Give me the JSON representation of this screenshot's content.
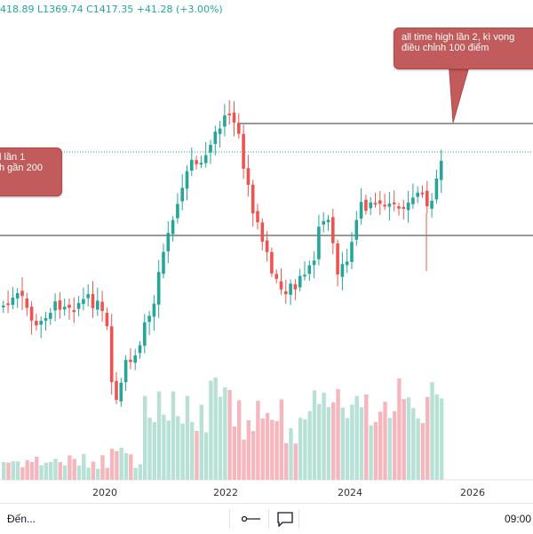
{
  "ohlc_readout": "418.89  L1369.74  C1417.35  +41.28 (+3.00%)",
  "annotations": {
    "first": {
      "line1": "l lần 1",
      "line2": "h gần 200"
    },
    "second": {
      "line1": "all time high lần 2, kì vọng",
      "line2": "điều chỉnh 100 điểm"
    }
  },
  "x_axis": {
    "labels": [
      "2020",
      "2022",
      "2024",
      "2026"
    ]
  },
  "toolbar": {
    "left_label": "Đến...",
    "time_label": "09:00"
  },
  "colors": {
    "up": "#26a69a",
    "down": "#ef5350",
    "vol_up": "#b7e1d4",
    "vol_down": "#f5b7bd",
    "bubble": "#c25b5b"
  },
  "icons": {
    "range": "range-icon",
    "comment": "comment-icon"
  }
}
